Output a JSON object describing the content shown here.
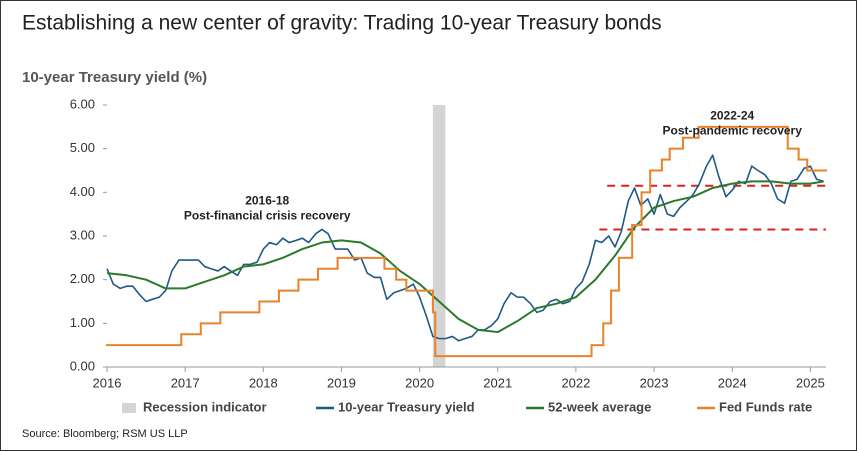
{
  "chart_data": {
    "type": "line",
    "title": "Establishing a new center of gravity: Trading 10-year Treasury bonds",
    "y_label": "10-year Treasury yield (%)",
    "source": "Source: Bloomberg; RSM US LLP",
    "xlim": [
      2016,
      2025.2
    ],
    "xticks": [
      2016,
      2017,
      2018,
      2019,
      2020,
      2021,
      2022,
      2023,
      2024,
      2025
    ],
    "ylim": [
      0,
      6
    ],
    "yticks": [
      {
        "value": 0,
        "label": "0.00"
      },
      {
        "value": 1,
        "label": "1.00"
      },
      {
        "value": 2,
        "label": "2.00"
      },
      {
        "value": 3,
        "label": "3.00"
      },
      {
        "value": 4,
        "label": "4.00"
      },
      {
        "value": 5,
        "label": "5.00"
      },
      {
        "value": 6,
        "label": "6.00"
      }
    ],
    "recession": {
      "name": "Recession indicator",
      "color": "#d4d4d4",
      "x": [
        2020.17,
        2020.33
      ]
    },
    "reference_lines": [
      {
        "value": 4.15,
        "from": 2022.4
      },
      {
        "value": 3.15,
        "from": 2022.3
      }
    ],
    "reference_color": "#e02020",
    "annotations": [
      {
        "lines": [
          "2016-18",
          "Post-financial crisis recovery"
        ],
        "x": 2018.05,
        "y": 3.45
      },
      {
        "lines": [
          "2022-24",
          "Post-pandemic recovery"
        ],
        "x": 2024.0,
        "y": 5.4
      }
    ],
    "series": [
      {
        "name": "10-year Treasury yield",
        "color": "#1f5a85",
        "width": 1.6,
        "x": [
          2016.0,
          2016.08,
          2016.17,
          2016.25,
          2016.33,
          2016.42,
          2016.5,
          2016.58,
          2016.67,
          2016.75,
          2016.83,
          2016.92,
          2017.0,
          2017.08,
          2017.17,
          2017.25,
          2017.33,
          2017.42,
          2017.5,
          2017.58,
          2017.67,
          2017.75,
          2017.83,
          2017.92,
          2018.0,
          2018.08,
          2018.17,
          2018.25,
          2018.33,
          2018.42,
          2018.5,
          2018.58,
          2018.67,
          2018.75,
          2018.83,
          2018.92,
          2019.0,
          2019.08,
          2019.17,
          2019.25,
          2019.33,
          2019.42,
          2019.5,
          2019.58,
          2019.67,
          2019.75,
          2019.83,
          2019.92,
          2020.0,
          2020.08,
          2020.17,
          2020.25,
          2020.33,
          2020.42,
          2020.5,
          2020.58,
          2020.67,
          2020.75,
          2020.83,
          2020.92,
          2021.0,
          2021.08,
          2021.17,
          2021.25,
          2021.33,
          2021.42,
          2021.5,
          2021.58,
          2021.67,
          2021.75,
          2021.83,
          2021.92,
          2022.0,
          2022.08,
          2022.17,
          2022.25,
          2022.33,
          2022.42,
          2022.5,
          2022.58,
          2022.67,
          2022.75,
          2022.83,
          2022.92,
          2023.0,
          2023.08,
          2023.17,
          2023.25,
          2023.33,
          2023.42,
          2023.5,
          2023.58,
          2023.67,
          2023.75,
          2023.83,
          2023.92,
          2024.0,
          2024.08,
          2024.17,
          2024.25,
          2024.33,
          2024.42,
          2024.5,
          2024.58,
          2024.67,
          2024.75,
          2024.83,
          2024.92,
          2025.0,
          2025.08,
          2025.17
        ],
        "values": [
          2.25,
          1.9,
          1.8,
          1.85,
          1.85,
          1.65,
          1.5,
          1.55,
          1.6,
          1.75,
          2.2,
          2.45,
          2.45,
          2.45,
          2.45,
          2.3,
          2.25,
          2.2,
          2.3,
          2.2,
          2.1,
          2.35,
          2.35,
          2.4,
          2.7,
          2.85,
          2.8,
          2.95,
          2.85,
          2.9,
          2.95,
          2.85,
          3.05,
          3.15,
          3.05,
          2.7,
          2.7,
          2.7,
          2.45,
          2.5,
          2.15,
          2.05,
          2.05,
          1.55,
          1.7,
          1.75,
          1.8,
          1.9,
          1.6,
          1.2,
          0.7,
          0.65,
          0.65,
          0.7,
          0.6,
          0.65,
          0.7,
          0.85,
          0.85,
          0.95,
          1.1,
          1.45,
          1.7,
          1.6,
          1.6,
          1.45,
          1.25,
          1.3,
          1.5,
          1.55,
          1.45,
          1.5,
          1.8,
          1.95,
          2.35,
          2.9,
          2.85,
          3.0,
          2.75,
          3.1,
          3.8,
          4.1,
          3.7,
          3.85,
          3.5,
          3.95,
          3.5,
          3.45,
          3.65,
          3.8,
          3.95,
          4.2,
          4.6,
          4.85,
          4.35,
          3.9,
          4.05,
          4.25,
          4.2,
          4.6,
          4.5,
          4.4,
          4.2,
          3.85,
          3.75,
          4.25,
          4.3,
          4.55,
          4.6,
          4.3,
          4.25
        ]
      },
      {
        "name": "52-week average",
        "color": "#2a7a2a",
        "width": 2,
        "x": [
          2016.0,
          2016.25,
          2016.5,
          2016.75,
          2017.0,
          2017.25,
          2017.5,
          2017.75,
          2018.0,
          2018.25,
          2018.5,
          2018.75,
          2019.0,
          2019.25,
          2019.5,
          2019.75,
          2020.0,
          2020.25,
          2020.5,
          2020.75,
          2021.0,
          2021.25,
          2021.5,
          2021.75,
          2022.0,
          2022.25,
          2022.5,
          2022.75,
          2023.0,
          2023.25,
          2023.5,
          2023.75,
          2024.0,
          2024.25,
          2024.5,
          2024.75,
          2025.0,
          2025.17
        ],
        "values": [
          2.15,
          2.1,
          2.0,
          1.8,
          1.8,
          1.95,
          2.1,
          2.3,
          2.35,
          2.5,
          2.7,
          2.85,
          2.9,
          2.85,
          2.6,
          2.2,
          1.9,
          1.5,
          1.1,
          0.85,
          0.8,
          1.05,
          1.35,
          1.45,
          1.6,
          2.0,
          2.55,
          3.2,
          3.65,
          3.8,
          3.9,
          4.1,
          4.2,
          4.25,
          4.25,
          4.2,
          4.2,
          4.25
        ]
      },
      {
        "name": "Fed Funds rate",
        "color": "#e8832a",
        "width": 2,
        "step": true,
        "x": [
          2016.0,
          2016.95,
          2017.2,
          2017.45,
          2017.95,
          2018.2,
          2018.45,
          2018.7,
          2018.95,
          2019.55,
          2019.7,
          2019.83,
          2020.17,
          2020.2,
          2022.2,
          2022.35,
          2022.45,
          2022.55,
          2022.72,
          2022.84,
          2022.95,
          2023.1,
          2023.2,
          2023.37,
          2023.57,
          2024.71,
          2024.85,
          2024.96
        ],
        "values": [
          0.5,
          0.75,
          1.0,
          1.25,
          1.5,
          1.75,
          2.0,
          2.25,
          2.5,
          2.25,
          2.0,
          1.75,
          1.25,
          0.25,
          0.5,
          1.0,
          1.75,
          2.5,
          3.25,
          4.0,
          4.5,
          4.75,
          5.0,
          5.25,
          5.5,
          5.0,
          4.75,
          4.5
        ]
      }
    ]
  }
}
